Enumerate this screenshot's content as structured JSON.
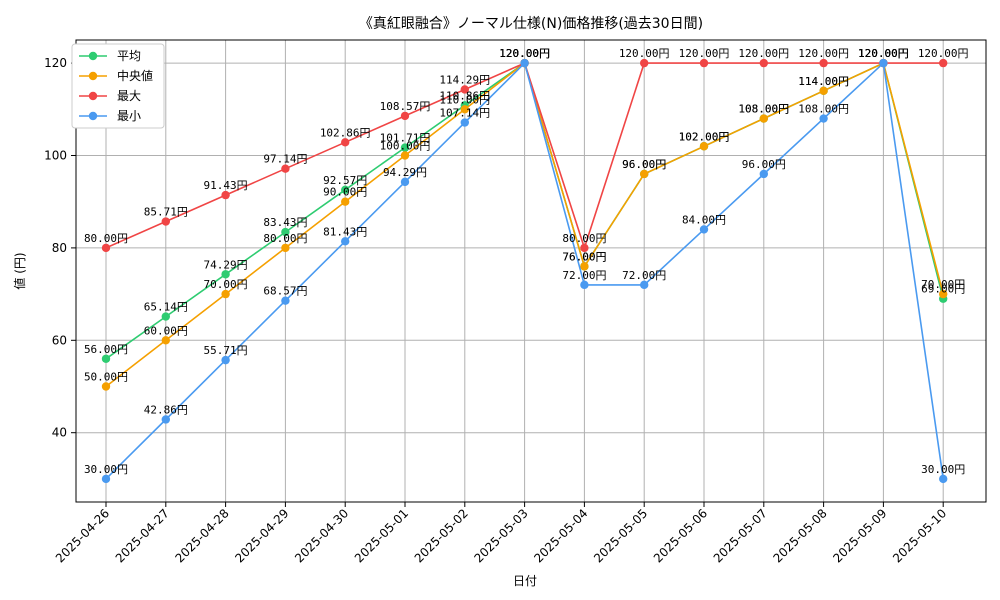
{
  "chart_data": {
    "type": "line",
    "title": "《真紅眼融合》ノーマル仕様(N)価格推移(過去30日間)",
    "xlabel": "日付",
    "ylabel": "値 (円)",
    "ylim": [
      25,
      125
    ],
    "yticks": [
      40,
      60,
      80,
      100,
      120
    ],
    "grid": true,
    "legend_position": "top-left",
    "unit_suffix": "円",
    "categories": [
      "2025-04-26",
      "2025-04-27",
      "2025-04-28",
      "2025-04-29",
      "2025-04-30",
      "2025-05-01",
      "2025-05-02",
      "2025-05-03",
      "2025-05-04",
      "2025-05-05",
      "2025-05-06",
      "2025-05-07",
      "2025-05-08",
      "2025-05-09",
      "2025-05-10"
    ],
    "series": [
      {
        "name": "平均",
        "color": "#2ecc71",
        "values": [
          56.0,
          65.14,
          74.29,
          83.43,
          92.57,
          101.71,
          110.86,
          120.0,
          76.0,
          96.0,
          102.0,
          108.0,
          114.0,
          120.0,
          69.0
        ]
      },
      {
        "name": "中央値",
        "color": "#f5a000",
        "values": [
          50.0,
          60.0,
          70.0,
          80.0,
          90.0,
          100.0,
          110.0,
          120.0,
          76.0,
          96.0,
          102.0,
          108.0,
          114.0,
          120.0,
          70.0
        ]
      },
      {
        "name": "最大",
        "color": "#f04545",
        "values": [
          80.0,
          85.71,
          91.43,
          97.14,
          102.86,
          108.57,
          114.29,
          120.0,
          80.0,
          120.0,
          120.0,
          120.0,
          120.0,
          120.0,
          120.0
        ]
      },
      {
        "name": "最小",
        "color": "#4a9af0",
        "values": [
          30.0,
          42.86,
          55.71,
          68.57,
          81.43,
          94.29,
          107.14,
          120.0,
          72.0,
          72.0,
          84.0,
          96.0,
          108.0,
          120.0,
          30.0
        ]
      }
    ]
  }
}
